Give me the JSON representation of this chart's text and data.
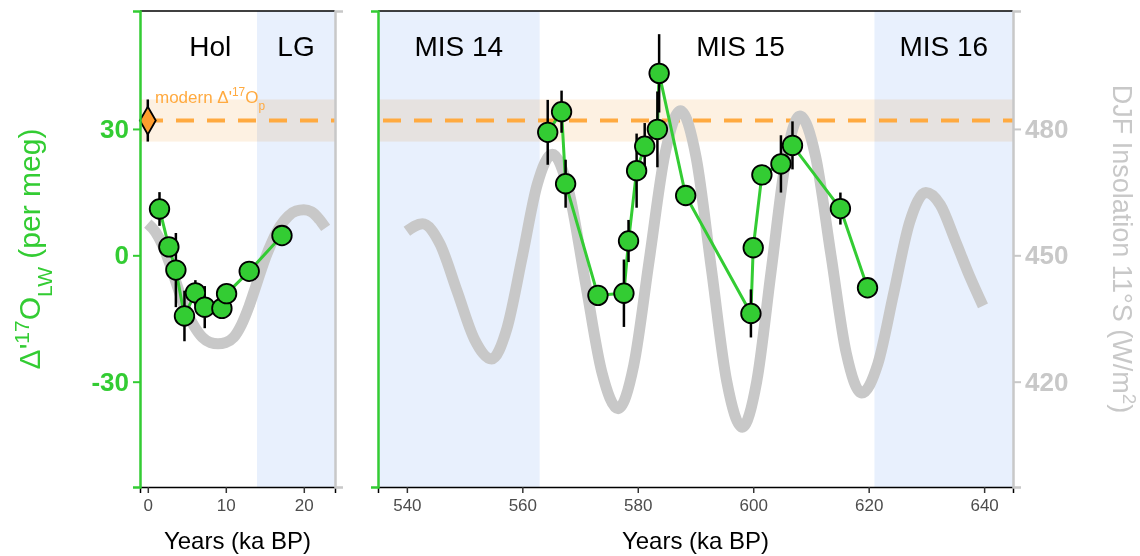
{
  "chart_data": [
    {
      "type": "line",
      "xlabel": "Years (ka BP)",
      "ylabel": "Δ'$^{17}$O$_{LW}$ (per meg)",
      "xlim": [
        -1,
        24
      ],
      "xticks": [
        0,
        10,
        20
      ],
      "ylim": [
        -55,
        58
      ],
      "yticks": [
        -30,
        0,
        30
      ],
      "y2lim": [
        395,
        508
      ],
      "bands": [
        {
          "axis": "x",
          "from": 14,
          "to": 24,
          "label": "LG",
          "color": "#e8f0fd"
        },
        {
          "axis": "y",
          "from": 27,
          "to": 37,
          "color": "#fdf1e2"
        }
      ],
      "ref_lines": [
        {
          "axis": "y",
          "value": 32,
          "label": "modern Δ'$^{17}$O$_{p}$",
          "color": "#ffaa40",
          "line_style": "dashed"
        }
      ],
      "annotations": [
        "Hol"
      ],
      "tick_labels": "xy",
      "series": [
        {
          "axis": "y2",
          "color": "#c8c8c8",
          "x": [
            0,
            1,
            2,
            3,
            4,
            5,
            6,
            7,
            8,
            9,
            10,
            11,
            12,
            13,
            14,
            15,
            16,
            17,
            18,
            19,
            20,
            21,
            22,
            22.8
          ],
          "values": [
            457.5,
            455.5,
            452,
            447,
            441.5,
            436.5,
            433,
            430.5,
            429.3,
            429,
            429.3,
            430.5,
            433.5,
            438,
            443.5,
            449,
            453.5,
            457,
            459.3,
            460.5,
            460.8,
            460.3,
            458.5,
            456.5
          ]
        },
        {
          "marker": "circle",
          "color": "#33cc33",
          "x": [
            1.5,
            2.7,
            3.6,
            4.7,
            6.1,
            7.3,
            9.5,
            10.1,
            13,
            17.2
          ],
          "values": [
            11,
            2,
            -3.5,
            -14.4,
            -8.9,
            -12.3,
            -12.6,
            -9.1,
            -3.8,
            4.7
          ],
          "errors": [
            4,
            null,
            8.8,
            6,
            3,
            5,
            null,
            null,
            null,
            null
          ]
        },
        {
          "type": "scatter",
          "marker": "diamond",
          "color": "#ff9d2e",
          "x": [
            0
          ],
          "values": [
            32
          ],
          "errors": [
            5
          ]
        }
      ]
    },
    {
      "type": "line",
      "xlabel": "Years (ka BP)",
      "y2label": "DJF Insolation 11°S (W/m$^{2}$)",
      "xlim": [
        535,
        645
      ],
      "xticks": [
        540,
        560,
        580,
        600,
        620,
        640
      ],
      "ylim": [
        -55,
        58
      ],
      "y2lim": [
        395,
        508
      ],
      "y2ticks": [
        420,
        450,
        480
      ],
      "bands": [
        {
          "axis": "x",
          "from": 535,
          "to": 563,
          "label": "MIS 14",
          "color": "#e8f0fd"
        },
        {
          "axis": "x",
          "from": 621,
          "to": 645,
          "label": "MIS 16",
          "color": "#e8f0fd"
        },
        {
          "axis": "y",
          "from": 27,
          "to": 37,
          "color": "#fdf1e2"
        }
      ],
      "ref_lines": [
        {
          "axis": "y",
          "value": 32,
          "color": "#ffaa40",
          "line_style": "dashed"
        }
      ],
      "annotations": [
        "MIS 15"
      ],
      "tick_labels": "xy2",
      "series": [
        {
          "axis": "y2",
          "color": "#c8c8c8",
          "x": [
            540,
            542.7,
            545.7,
            548.7,
            551.7,
            554.7,
            557.3,
            560,
            562.6,
            565.2,
            568.05,
            570.9,
            573.75,
            576.6,
            579.3,
            582,
            584.7,
            587.4,
            590.1,
            592.75,
            595.4,
            598.1,
            600.6,
            603.1,
            605.6,
            608.1,
            610.8,
            613.45,
            616.1,
            618.8,
            621.6,
            624.35,
            627.1,
            629.9,
            632.4,
            635,
            637.5,
            639.8
          ],
          "values": [
            455.7,
            457.5,
            452.8,
            441.5,
            430.1,
            425.4,
            432.5,
            449.7,
            466.9,
            474,
            465.2,
            443.8,
            422.4,
            413.6,
            423.9,
            449,
            474,
            484.3,
            473.3,
            446.8,
            420.2,
            409.2,
            420,
            446.2,
            472.3,
            483.1,
            473.5,
            450.2,
            426.9,
            417.3,
            424.3,
            441.1,
            457.9,
            464.9,
            462,
            453.5,
            445,
            438
          ]
        },
        {
          "marker": "circle",
          "color": "#33cc33",
          "x": [
            564.4,
            566.8,
            567.5,
            573.1,
            577.6,
            578.4,
            579.8,
            581.2,
            583.4,
            583.7,
            588.3,
            599.6,
            600,
            601.5,
            604.8,
            606.8,
            615.1,
            619.8
          ],
          "values": [
            29.2,
            34.1,
            17,
            -9.5,
            -9,
            3.4,
            20.1,
            25.9,
            29.9,
            43.2,
            14.2,
            -13.8,
            1.8,
            19.1,
            21.7,
            26.1,
            11.1,
            -7.7
          ],
          "errors": [
            7.7,
            5,
            5.7,
            null,
            8,
            5,
            8.8,
            5.5,
            9,
            9.3,
            2,
            5.7,
            null,
            null,
            6.8,
            5.7,
            3.8,
            null
          ]
        }
      ]
    }
  ]
}
